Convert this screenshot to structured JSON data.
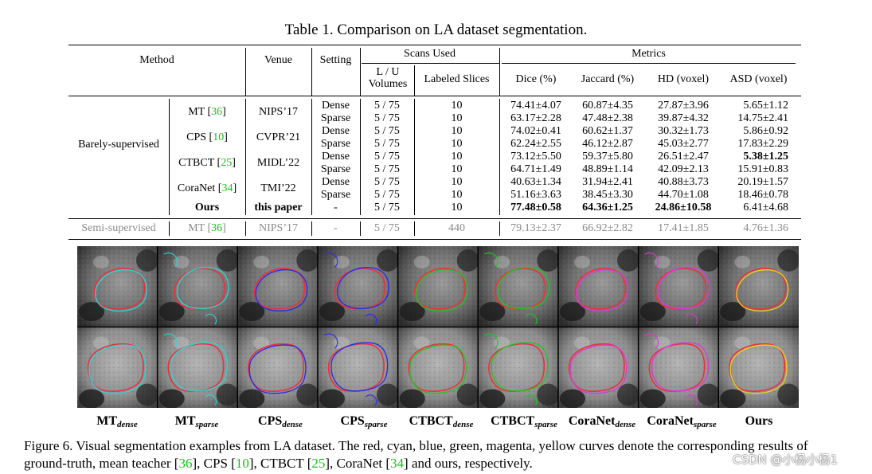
{
  "title": "Table 1. Comparison on LA dataset segmentation.",
  "header": {
    "method": "Method",
    "venue": "Venue",
    "setting": "Setting",
    "scans_used": "Scans Used",
    "lu_volumes": "L / U Volumes",
    "labeled_slices": "Labeled Slices",
    "metrics": "Metrics",
    "dice": "Dice (%)",
    "jaccard": "Jaccard (%)",
    "hd": "HD (voxel)",
    "asd": "ASD (voxel)"
  },
  "barely_label": "Barely-supervised",
  "methods": [
    {
      "name": "MT",
      "ref": "36",
      "venue": "NIPS’17",
      "rows": [
        {
          "setting": "Dense",
          "lu": "5 / 75",
          "slices": "10",
          "dice": "74.41±4.07",
          "jaccard": "60.87±4.35",
          "hd": "27.87±3.96",
          "asd": "5.65±1.12"
        },
        {
          "setting": "Sparse",
          "lu": "5 / 75",
          "slices": "10",
          "dice": "63.17±2.28",
          "jaccard": "47.48±2.38",
          "hd": "39.87±4.32",
          "asd": "14.75±2.41"
        }
      ]
    },
    {
      "name": "CPS",
      "ref": "10",
      "venue": "CVPR’21",
      "rows": [
        {
          "setting": "Dense",
          "lu": "5 / 75",
          "slices": "10",
          "dice": "74.02±0.41",
          "jaccard": "60.62±1.37",
          "hd": "30.32±1.73",
          "asd": "5.86±0.92"
        },
        {
          "setting": "Sparse",
          "lu": "5 / 75",
          "slices": "10",
          "dice": "62.24±2.55",
          "jaccard": "46.12±2.87",
          "hd": "45.03±2.77",
          "asd": "17.83±2.29"
        }
      ]
    },
    {
      "name": "CTBCT",
      "ref": "25",
      "venue": "MIDL’22",
      "rows": [
        {
          "setting": "Dense",
          "lu": "5 / 75",
          "slices": "10",
          "dice": "73.12±5.50",
          "jaccard": "59.37±5.80",
          "hd": "26.51±2.47",
          "asd": "5.38±1.25"
        },
        {
          "setting": "Sparse",
          "lu": "5 / 75",
          "slices": "10",
          "dice": "64.71±1.49",
          "jaccard": "48.89±1.14",
          "hd": "42.09±2.13",
          "asd": "15.91±0.83"
        }
      ]
    },
    {
      "name": "CoraNet",
      "ref": "34",
      "venue": "TMI’22",
      "rows": [
        {
          "setting": "Dense",
          "lu": "5 / 75",
          "slices": "10",
          "dice": "40.63±1.34",
          "jaccard": "31.94±2.41",
          "hd": "40.88±3.73",
          "asd": "20.19±1.57"
        },
        {
          "setting": "Sparse",
          "lu": "5 / 75",
          "slices": "10",
          "dice": "51.16±3.63",
          "jaccard": "38.45±3.30",
          "hd": "44.70±1.08",
          "asd": "18.46±0.78"
        }
      ]
    }
  ],
  "ours": {
    "name": "Ours",
    "venue": "this paper",
    "setting": "-",
    "lu": "5 / 75",
    "slices": "10",
    "dice": "77.48±0.58",
    "jaccard": "64.36±1.25",
    "hd": "24.86±10.58",
    "asd": "6.41±4.68"
  },
  "semi": {
    "group": "Semi-supervised",
    "name": "MT",
    "ref": "36",
    "venue": "NIPS’17",
    "setting": "-",
    "lu": "5 / 75",
    "slices": "440",
    "dice": "79.13±2.37",
    "jaccard": "66.92±2.82",
    "hd": "17.41±1.85",
    "asd": "4.76±1.36"
  },
  "figure_labels": [
    {
      "main": "MT",
      "sub": "dense"
    },
    {
      "main": "MT",
      "sub": "sparse"
    },
    {
      "main": "CPS",
      "sub": "dense"
    },
    {
      "main": "CPS",
      "sub": "sparse"
    },
    {
      "main": "CTBCT",
      "sub": "dense"
    },
    {
      "main": "CTBCT",
      "sub": "sparse"
    },
    {
      "main": "CoraNet",
      "sub": "dense"
    },
    {
      "main": "CoraNet",
      "sub": "sparse"
    },
    {
      "main": "Ours",
      "sub": ""
    }
  ],
  "caption": {
    "part1": "Figure 6.  Visual segmentation examples from LA dataset.  The red, cyan, blue, green, magenta, yellow curves denote the corresponding results of ground-truth, mean teacher [",
    "ref1": "36",
    "part2": "], CPS [",
    "ref2": "10",
    "part3": "], CTBCT [",
    "ref3": "25",
    "part4": "], CoraNet [",
    "ref4": "34",
    "part5": "] and ours, respectively."
  },
  "watermark": "CSDN @小杨小杨1",
  "colors": {
    "ref_link": "#12c412",
    "ground_truth": "#e8323c",
    "mean_teacher": "#2fd3d3",
    "cps": "#2a2ae8",
    "ctbct": "#22c322",
    "coranet": "#d83ad8",
    "ours": "#e6d21e",
    "muted_row": "#8a8a8a"
  }
}
